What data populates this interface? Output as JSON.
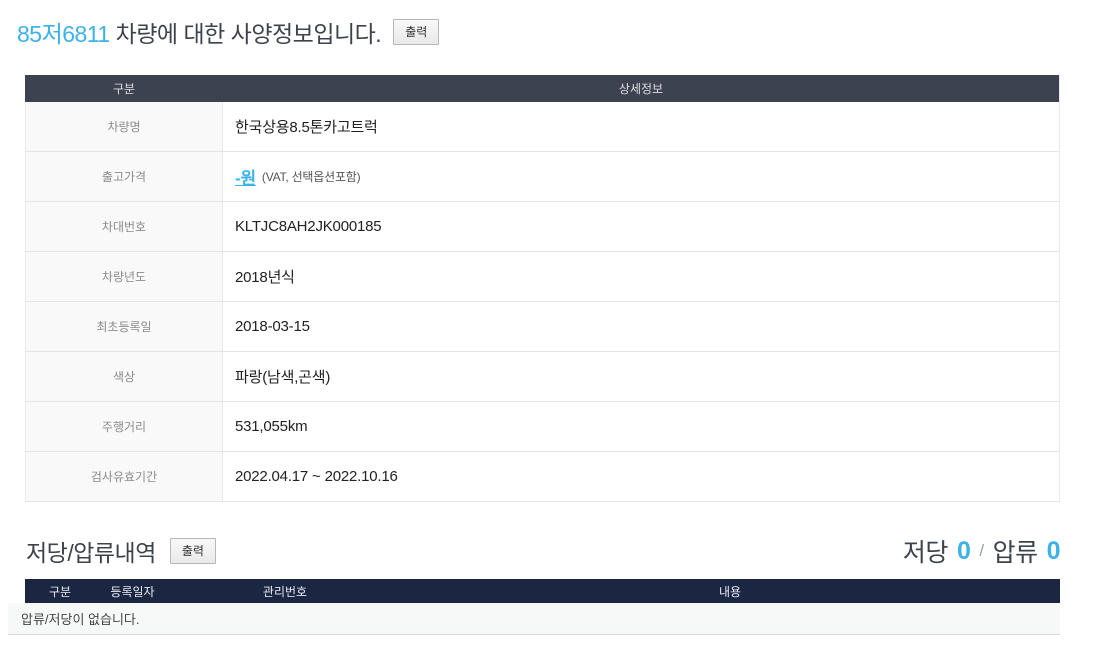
{
  "page": {
    "plate_number": "85저6811",
    "title_rest": " 차량에 대한 사양정보입니다.",
    "print_label": "출력"
  },
  "spec_table": {
    "header_label": "구분",
    "header_value": "상세정보",
    "rows": [
      {
        "label": "차량명",
        "value": "한국상용8.5톤카고트럭"
      },
      {
        "label": "출고가격",
        "value_highlight": "-원",
        "value_note": "(VAT, 선택옵션포함)"
      },
      {
        "label": "차대번호",
        "value": "KLTJC8AH2JK000185"
      },
      {
        "label": "차량년도",
        "value": "2018년식"
      },
      {
        "label": "최초등록일",
        "value": "2018-03-15"
      },
      {
        "label": "색상",
        "value": "파랑(남색,곤색)"
      },
      {
        "label": "주행거리",
        "value": "531,055km"
      },
      {
        "label": "검사유효기간",
        "value": "2022.04.17 ~ 2022.10.16"
      }
    ]
  },
  "lien_section": {
    "title": "저당/압류내역",
    "print_label": "출력",
    "summary": {
      "mortgage_label": "저당",
      "mortgage_count": "0",
      "separator": "/",
      "seizure_label": "압류",
      "seizure_count": "0"
    },
    "table_headers": [
      "구분",
      "등록일자",
      "관리번호",
      "내용"
    ],
    "empty_message": "압류/저당이 없습니다."
  },
  "colors": {
    "accent_blue": "#3db2e8",
    "spec_header_bg": "#3c4250",
    "lien_header_bg": "#1b2742"
  }
}
